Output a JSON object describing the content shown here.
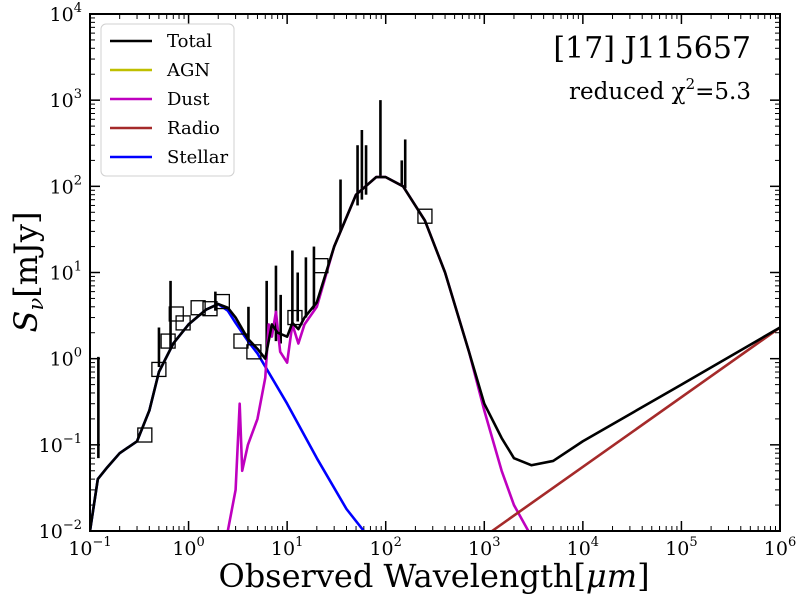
{
  "chart_data": {
    "type": "line",
    "scale": "log-log",
    "title": "[17] J115657",
    "subtitle_prefix": "reduced χ",
    "subtitle_power": "2",
    "subtitle_suffix": "=5.3",
    "xlabel_text": "Observed Wavelength[",
    "xlabel_unit": "μm",
    "xlabel_close": "]",
    "ylabel_symbol": "S",
    "ylabel_sub": "ν",
    "ylabel_unit": "[mJy]",
    "xlim": [
      0.1,
      1000000
    ],
    "ylim": [
      0.01,
      10000
    ],
    "x_ticks": [
      {
        "base": "10",
        "exp": "−1"
      },
      {
        "base": "10",
        "exp": "0"
      },
      {
        "base": "10",
        "exp": "1"
      },
      {
        "base": "10",
        "exp": "2"
      },
      {
        "base": "10",
        "exp": "3"
      },
      {
        "base": "10",
        "exp": "4"
      },
      {
        "base": "10",
        "exp": "5"
      },
      {
        "base": "10",
        "exp": "6"
      }
    ],
    "y_ticks": [
      {
        "base": "10",
        "exp": "−2"
      },
      {
        "base": "10",
        "exp": "−1"
      },
      {
        "base": "10",
        "exp": "0"
      },
      {
        "base": "10",
        "exp": "1"
      },
      {
        "base": "10",
        "exp": "2"
      },
      {
        "base": "10",
        "exp": "3"
      },
      {
        "base": "10",
        "exp": "4"
      }
    ],
    "legend_position": "top-left",
    "legend": [
      {
        "name": "Total",
        "color": "#000000"
      },
      {
        "name": "AGN",
        "color": "#bfbf00"
      },
      {
        "name": "Dust",
        "color": "#bf00bf"
      },
      {
        "name": "Radio",
        "color": "#a52a2a"
      },
      {
        "name": "Stellar",
        "color": "#0000ff"
      }
    ],
    "series": [
      {
        "name": "Stellar",
        "color": "#0000ff",
        "x": [
          0.1,
          0.12,
          0.15,
          0.2,
          0.3,
          0.4,
          0.5,
          0.7,
          1.0,
          1.5,
          2.0,
          2.5,
          3.0,
          4.0,
          5.0,
          7.0,
          10,
          20,
          40,
          60
        ],
        "y": [
          0.01,
          0.04,
          0.055,
          0.08,
          0.11,
          0.25,
          0.7,
          1.5,
          2.5,
          3.7,
          4.3,
          3.6,
          2.6,
          1.6,
          1.15,
          0.6,
          0.3,
          0.07,
          0.018,
          0.01
        ]
      },
      {
        "name": "Dust",
        "color": "#bf00bf",
        "x": [
          2.5,
          3.0,
          3.3,
          3.5,
          4.0,
          5.0,
          6.0,
          6.5,
          7.0,
          7.7,
          8.5,
          10,
          11.3,
          13,
          15,
          20,
          30,
          50,
          80,
          100,
          150,
          250,
          400,
          700,
          1000,
          1500,
          2000,
          2800
        ],
        "y": [
          0.01,
          0.03,
          0.3,
          0.05,
          0.1,
          0.2,
          0.6,
          2.5,
          1.8,
          3.5,
          1.2,
          0.9,
          2.5,
          1.5,
          2.5,
          4,
          20,
          80,
          128,
          128,
          100,
          40,
          10,
          1.2,
          0.25,
          0.05,
          0.02,
          0.01
        ]
      },
      {
        "name": "Radio",
        "color": "#a52a2a",
        "x": [
          1200,
          1000000
        ],
        "y": [
          0.01,
          2.3
        ]
      },
      {
        "name": "Total",
        "color": "#000000",
        "x": [
          0.1,
          0.12,
          0.15,
          0.2,
          0.3,
          0.4,
          0.5,
          0.7,
          1.0,
          1.5,
          2.0,
          2.5,
          3.0,
          4.0,
          5.0,
          6.0,
          7.0,
          8.0,
          10,
          11.3,
          13,
          15,
          20,
          30,
          50,
          80,
          100,
          150,
          250,
          400,
          700,
          1000,
          1500,
          2000,
          3000,
          5000,
          10000,
          100000,
          1000000
        ],
        "y": [
          0.01,
          0.04,
          0.055,
          0.08,
          0.11,
          0.25,
          0.7,
          1.5,
          2.5,
          3.7,
          4.3,
          3.9,
          3.0,
          1.7,
          1.3,
          1.0,
          2.5,
          2.0,
          1.8,
          2.6,
          2.2,
          3.0,
          4.5,
          20,
          80,
          128,
          128,
          100,
          40,
          10,
          1.2,
          0.3,
          0.12,
          0.07,
          0.058,
          0.065,
          0.11,
          0.5,
          2.3
        ]
      }
    ],
    "emission_lines": [
      {
        "x": 0.1216,
        "y0": 0.07,
        "y1": 1.05
      },
      {
        "x": 0.5007,
        "y0": 0.8,
        "y1": 2.3
      },
      {
        "x": 0.6563,
        "y0": 1.3,
        "y1": 8.0
      },
      {
        "x": 1.87,
        "y0": 3.6,
        "y1": 6.0
      },
      {
        "x": 4.05,
        "y0": 1.5,
        "y1": 4.0
      },
      {
        "x": 6.2,
        "y0": 1.2,
        "y1": 8.0
      },
      {
        "x": 7.7,
        "y0": 1.6,
        "y1": 12
      },
      {
        "x": 8.6,
        "y0": 1.5,
        "y1": 5.5
      },
      {
        "x": 11.3,
        "y0": 2.4,
        "y1": 18
      },
      {
        "x": 12.8,
        "y0": 2.7,
        "y1": 10
      },
      {
        "x": 15.5,
        "y0": 3.0,
        "y1": 15
      },
      {
        "x": 18.7,
        "y0": 3.7,
        "y1": 20
      },
      {
        "x": 34.8,
        "y0": 30,
        "y1": 120
      },
      {
        "x": 51.8,
        "y0": 60,
        "y1": 300
      },
      {
        "x": 57.3,
        "y0": 70,
        "y1": 450
      },
      {
        "x": 63.2,
        "y0": 80,
        "y1": 300
      },
      {
        "x": 88.4,
        "y0": 125,
        "y1": 1000
      },
      {
        "x": 145.5,
        "y0": 100,
        "y1": 200
      },
      {
        "x": 157.7,
        "y0": 95,
        "y1": 350
      }
    ],
    "observations": [
      {
        "x": 0.36,
        "y": 0.13
      },
      {
        "x": 0.5,
        "y": 0.75
      },
      {
        "x": 0.62,
        "y": 1.6
      },
      {
        "x": 0.75,
        "y": 3.3
      },
      {
        "x": 0.88,
        "y": 2.6
      },
      {
        "x": 1.25,
        "y": 3.9
      },
      {
        "x": 1.65,
        "y": 3.8
      },
      {
        "x": 2.2,
        "y": 4.6
      },
      {
        "x": 3.4,
        "y": 1.6
      },
      {
        "x": 4.6,
        "y": 1.2
      },
      {
        "x": 12,
        "y": 3.0
      },
      {
        "x": 22,
        "y": 12
      },
      {
        "x": 250,
        "y": 45
      }
    ]
  }
}
